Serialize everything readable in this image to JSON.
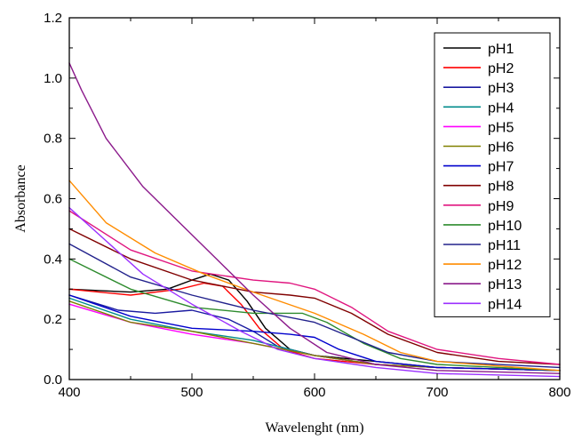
{
  "chart_data": {
    "type": "line",
    "title": "",
    "xlabel": "Wavelenght (nm)",
    "ylabel": "Absorbance",
    "xlim": [
      400,
      800
    ],
    "ylim": [
      0.0,
      1.2
    ],
    "x_ticks": [
      400,
      500,
      600,
      700,
      800
    ],
    "x_tick_labels": [
      "400",
      "500",
      "600",
      "700",
      "800"
    ],
    "y_ticks": [
      0.0,
      0.2,
      0.4,
      0.6,
      0.8,
      1.0,
      1.2
    ],
    "y_tick_labels": [
      "0.0",
      "0.2",
      "0.4",
      "0.6",
      "0.8",
      "1.0",
      "1.2"
    ],
    "legend_position": "top-right",
    "grid": false,
    "series": [
      {
        "name": "pH1",
        "color": "#000000",
        "points": [
          [
            400,
            0.3
          ],
          [
            450,
            0.29
          ],
          [
            480,
            0.3
          ],
          [
            500,
            0.33
          ],
          [
            515,
            0.35
          ],
          [
            530,
            0.33
          ],
          [
            545,
            0.26
          ],
          [
            560,
            0.17
          ],
          [
            580,
            0.1
          ],
          [
            600,
            0.08
          ],
          [
            650,
            0.06
          ],
          [
            700,
            0.04
          ],
          [
            800,
            0.03
          ]
        ]
      },
      {
        "name": "pH2",
        "color": "#ff0000",
        "points": [
          [
            400,
            0.3
          ],
          [
            450,
            0.28
          ],
          [
            490,
            0.3
          ],
          [
            510,
            0.32
          ],
          [
            525,
            0.31
          ],
          [
            540,
            0.25
          ],
          [
            555,
            0.17
          ],
          [
            575,
            0.1
          ],
          [
            600,
            0.07
          ],
          [
            650,
            0.05
          ],
          [
            700,
            0.04
          ],
          [
            800,
            0.03
          ]
        ]
      },
      {
        "name": "pH3",
        "color": "#1a1aa0",
        "points": [
          [
            400,
            0.28
          ],
          [
            440,
            0.23
          ],
          [
            470,
            0.22
          ],
          [
            500,
            0.23
          ],
          [
            530,
            0.2
          ],
          [
            550,
            0.16
          ],
          [
            570,
            0.11
          ],
          [
            600,
            0.08
          ],
          [
            650,
            0.05
          ],
          [
            700,
            0.04
          ],
          [
            800,
            0.03
          ]
        ]
      },
      {
        "name": "pH4",
        "color": "#008b8b",
        "points": [
          [
            400,
            0.27
          ],
          [
            450,
            0.2
          ],
          [
            500,
            0.16
          ],
          [
            550,
            0.13
          ],
          [
            580,
            0.1
          ],
          [
            600,
            0.08
          ],
          [
            650,
            0.05
          ],
          [
            700,
            0.04
          ],
          [
            800,
            0.03
          ]
        ]
      },
      {
        "name": "pH5",
        "color": "#ff00ff",
        "points": [
          [
            400,
            0.25
          ],
          [
            450,
            0.19
          ],
          [
            500,
            0.15
          ],
          [
            550,
            0.12
          ],
          [
            600,
            0.08
          ],
          [
            650,
            0.05
          ],
          [
            700,
            0.04
          ],
          [
            800,
            0.03
          ]
        ]
      },
      {
        "name": "pH6",
        "color": "#808000",
        "points": [
          [
            400,
            0.26
          ],
          [
            450,
            0.19
          ],
          [
            500,
            0.16
          ],
          [
            550,
            0.12
          ],
          [
            600,
            0.08
          ],
          [
            650,
            0.05
          ],
          [
            700,
            0.04
          ],
          [
            800,
            0.03
          ]
        ]
      },
      {
        "name": "pH7",
        "color": "#0000cd",
        "points": [
          [
            400,
            0.28
          ],
          [
            450,
            0.21
          ],
          [
            500,
            0.17
          ],
          [
            550,
            0.16
          ],
          [
            580,
            0.15
          ],
          [
            600,
            0.14
          ],
          [
            620,
            0.1
          ],
          [
            650,
            0.06
          ],
          [
            700,
            0.04
          ],
          [
            800,
            0.03
          ]
        ]
      },
      {
        "name": "pH8",
        "color": "#800000",
        "points": [
          [
            400,
            0.5
          ],
          [
            450,
            0.4
          ],
          [
            500,
            0.33
          ],
          [
            550,
            0.29
          ],
          [
            580,
            0.28
          ],
          [
            600,
            0.27
          ],
          [
            630,
            0.22
          ],
          [
            660,
            0.15
          ],
          [
            700,
            0.09
          ],
          [
            750,
            0.06
          ],
          [
            800,
            0.05
          ]
        ]
      },
      {
        "name": "pH9",
        "color": "#e0157f",
        "points": [
          [
            400,
            0.56
          ],
          [
            450,
            0.43
          ],
          [
            500,
            0.36
          ],
          [
            550,
            0.33
          ],
          [
            580,
            0.32
          ],
          [
            600,
            0.3
          ],
          [
            630,
            0.24
          ],
          [
            660,
            0.16
          ],
          [
            700,
            0.1
          ],
          [
            750,
            0.07
          ],
          [
            800,
            0.05
          ]
        ]
      },
      {
        "name": "pH10",
        "color": "#2e8b2e",
        "points": [
          [
            400,
            0.4
          ],
          [
            450,
            0.3
          ],
          [
            500,
            0.24
          ],
          [
            550,
            0.22
          ],
          [
            590,
            0.22
          ],
          [
            610,
            0.19
          ],
          [
            640,
            0.12
          ],
          [
            670,
            0.07
          ],
          [
            700,
            0.05
          ],
          [
            800,
            0.03
          ]
        ]
      },
      {
        "name": "pH11",
        "color": "#22228c",
        "points": [
          [
            400,
            0.45
          ],
          [
            450,
            0.34
          ],
          [
            500,
            0.28
          ],
          [
            550,
            0.23
          ],
          [
            600,
            0.19
          ],
          [
            630,
            0.14
          ],
          [
            660,
            0.09
          ],
          [
            700,
            0.06
          ],
          [
            800,
            0.04
          ]
        ]
      },
      {
        "name": "pH12",
        "color": "#ff8c00",
        "points": [
          [
            400,
            0.66
          ],
          [
            430,
            0.52
          ],
          [
            470,
            0.42
          ],
          [
            510,
            0.35
          ],
          [
            550,
            0.29
          ],
          [
            600,
            0.22
          ],
          [
            640,
            0.15
          ],
          [
            670,
            0.09
          ],
          [
            700,
            0.06
          ],
          [
            800,
            0.03
          ]
        ]
      },
      {
        "name": "pH13",
        "color": "#8b1a8b",
        "points": [
          [
            400,
            1.05
          ],
          [
            410,
            0.96
          ],
          [
            430,
            0.8
          ],
          [
            460,
            0.64
          ],
          [
            490,
            0.52
          ],
          [
            520,
            0.4
          ],
          [
            550,
            0.28
          ],
          [
            580,
            0.17
          ],
          [
            610,
            0.09
          ],
          [
            650,
            0.05
          ],
          [
            700,
            0.03
          ],
          [
            800,
            0.02
          ]
        ]
      },
      {
        "name": "pH14",
        "color": "#9b30ff",
        "points": [
          [
            400,
            0.57
          ],
          [
            430,
            0.46
          ],
          [
            460,
            0.35
          ],
          [
            500,
            0.25
          ],
          [
            540,
            0.16
          ],
          [
            570,
            0.1
          ],
          [
            600,
            0.07
          ],
          [
            650,
            0.04
          ],
          [
            700,
            0.02
          ],
          [
            800,
            0.01
          ]
        ]
      }
    ]
  }
}
